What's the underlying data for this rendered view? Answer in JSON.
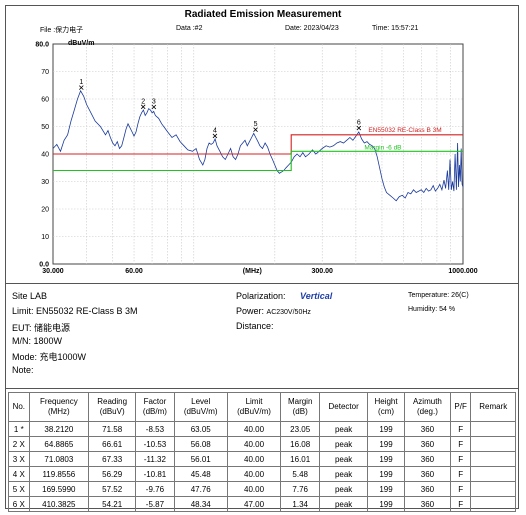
{
  "header": {
    "title": "Radiated Emission Measurement",
    "file": "File :保力电子",
    "data": "Data :#2",
    "date": "Date: 2023/04/23",
    "time": "Time: 15:57:21"
  },
  "chart_data": {
    "type": "line",
    "title": "Radiated Emission Measurement",
    "xlabel": "(MHz)",
    "ylabel": "dBuV/m",
    "x_scale": "log",
    "xlim": [
      30,
      1000
    ],
    "ylim": [
      0,
      80
    ],
    "x_ticks": [
      {
        "value": 30,
        "label": "30.000"
      },
      {
        "value": 60,
        "label": "60.00"
      },
      {
        "value": 300,
        "label": "300.00"
      },
      {
        "value": 1000,
        "label": "1000.000"
      }
    ],
    "x_unit_label_at": 165,
    "y_ticks": [
      {
        "value": 0,
        "label": "0.0"
      },
      {
        "value": 10,
        "label": "10"
      },
      {
        "value": 20,
        "label": "20"
      },
      {
        "value": 30,
        "label": "30"
      },
      {
        "value": 40,
        "label": "40"
      },
      {
        "value": 50,
        "label": "50"
      },
      {
        "value": 60,
        "label": "60"
      },
      {
        "value": 70,
        "label": "70"
      },
      {
        "value": 80,
        "label": "80.0"
      }
    ],
    "grid": true,
    "limit_line": {
      "label": "EN55032 RE-Class B 3M",
      "color": "#d42020",
      "points": [
        [
          30,
          40
        ],
        [
          230,
          40
        ],
        [
          230,
          47
        ],
        [
          1000,
          47
        ]
      ]
    },
    "margin_line": {
      "label": "Margin -6 dB",
      "color": "#1fc21f",
      "points": [
        [
          30,
          34
        ],
        [
          230,
          34
        ],
        [
          230,
          41
        ],
        [
          1000,
          41
        ]
      ]
    },
    "trace": {
      "color": "#1a3a9c",
      "points": [
        [
          30,
          42
        ],
        [
          31,
          43.5
        ],
        [
          32,
          41
        ],
        [
          33,
          45
        ],
        [
          34,
          47
        ],
        [
          35,
          52
        ],
        [
          36,
          56
        ],
        [
          37,
          60
        ],
        [
          38,
          63
        ],
        [
          39,
          61
        ],
        [
          40,
          58
        ],
        [
          41.5,
          55
        ],
        [
          43,
          52
        ],
        [
          45,
          50
        ],
        [
          47,
          47
        ],
        [
          48,
          48.5
        ],
        [
          49,
          46
        ],
        [
          50,
          44
        ],
        [
          51,
          43
        ],
        [
          52,
          44.5
        ],
        [
          53,
          42
        ],
        [
          54,
          43
        ],
        [
          55,
          46
        ],
        [
          56,
          49
        ],
        [
          57,
          51
        ],
        [
          58,
          49.5
        ],
        [
          59,
          48
        ],
        [
          60,
          46.5
        ],
        [
          61,
          48
        ],
        [
          62,
          51
        ],
        [
          63,
          53.5
        ],
        [
          64,
          55
        ],
        [
          65,
          56
        ],
        [
          66,
          54
        ],
        [
          67,
          55
        ],
        [
          68,
          56.5
        ],
        [
          69,
          56
        ],
        [
          70,
          55
        ],
        [
          71,
          55.5
        ],
        [
          72,
          54
        ],
        [
          74,
          53
        ],
        [
          76,
          51
        ],
        [
          78,
          49.5
        ],
        [
          80,
          48
        ],
        [
          83,
          46
        ],
        [
          86,
          47
        ],
        [
          89,
          44.5
        ],
        [
          92,
          43
        ],
        [
          95,
          41.5
        ],
        [
          99,
          41
        ],
        [
          102,
          42
        ],
        [
          105,
          38
        ],
        [
          108,
          36
        ],
        [
          110,
          38
        ],
        [
          112,
          42
        ],
        [
          114,
          44
        ],
        [
          116,
          43.5
        ],
        [
          118,
          44
        ],
        [
          120,
          45.5
        ],
        [
          122,
          43
        ],
        [
          125,
          41
        ],
        [
          128,
          39
        ],
        [
          131,
          38
        ],
        [
          134,
          40
        ],
        [
          137,
          42
        ],
        [
          140,
          39
        ],
        [
          143,
          38
        ],
        [
          146,
          40
        ],
        [
          149,
          43
        ],
        [
          152,
          44
        ],
        [
          155,
          45
        ],
        [
          158,
          43
        ],
        [
          161,
          44.5
        ],
        [
          164,
          46
        ],
        [
          167,
          47.5
        ],
        [
          170,
          46
        ],
        [
          173,
          44.5
        ],
        [
          176,
          43
        ],
        [
          180,
          42
        ],
        [
          184,
          44
        ],
        [
          188,
          42.5
        ],
        [
          192,
          40
        ],
        [
          196,
          38
        ],
        [
          200,
          36
        ],
        [
          204,
          34
        ],
        [
          208,
          33
        ],
        [
          212,
          33.5
        ],
        [
          216,
          34
        ],
        [
          220,
          35
        ],
        [
          225,
          36
        ],
        [
          230,
          37
        ],
        [
          236,
          39
        ],
        [
          242,
          40
        ],
        [
          248,
          39
        ],
        [
          254,
          40.5
        ],
        [
          260,
          39
        ],
        [
          268,
          40
        ],
        [
          276,
          41.5
        ],
        [
          284,
          40
        ],
        [
          292,
          41
        ],
        [
          300,
          42
        ],
        [
          310,
          43
        ],
        [
          320,
          42.5
        ],
        [
          330,
          43
        ],
        [
          340,
          44
        ],
        [
          350,
          44.5
        ],
        [
          360,
          44
        ],
        [
          370,
          45
        ],
        [
          380,
          46
        ],
        [
          390,
          45
        ],
        [
          400,
          46.5
        ],
        [
          410,
          48
        ],
        [
          420,
          45.5
        ],
        [
          430,
          44
        ],
        [
          440,
          44.5
        ],
        [
          450,
          43.5
        ],
        [
          460,
          43
        ],
        [
          470,
          42
        ],
        [
          480,
          39
        ],
        [
          490,
          35
        ],
        [
          500,
          31
        ],
        [
          510,
          28
        ],
        [
          520,
          26
        ],
        [
          535,
          25
        ],
        [
          550,
          24
        ],
        [
          565,
          23
        ],
        [
          580,
          24.5
        ],
        [
          595,
          25
        ],
        [
          610,
          24
        ],
        [
          625,
          26
        ],
        [
          640,
          25.5
        ],
        [
          655,
          27
        ],
        [
          670,
          26
        ],
        [
          685,
          26.5
        ],
        [
          700,
          27
        ],
        [
          715,
          26
        ],
        [
          730,
          27.5
        ],
        [
          745,
          26.5
        ],
        [
          760,
          27
        ],
        [
          775,
          28.5
        ],
        [
          790,
          26.5
        ],
        [
          805,
          27.5
        ],
        [
          820,
          29
        ],
        [
          835,
          27
        ],
        [
          850,
          30.5
        ],
        [
          862,
          27.5
        ],
        [
          875,
          34
        ],
        [
          885,
          27
        ],
        [
          895,
          38
        ],
        [
          905,
          27
        ],
        [
          915,
          30
        ],
        [
          925,
          26.5
        ],
        [
          935,
          40
        ],
        [
          945,
          27
        ],
        [
          955,
          44
        ],
        [
          962,
          28
        ],
        [
          970,
          36
        ],
        [
          977,
          30
        ],
        [
          985,
          42
        ],
        [
          992,
          29
        ],
        [
          1000,
          28
        ]
      ]
    },
    "markers": [
      {
        "label": "1",
        "x": 38.212,
        "y": 63.05
      },
      {
        "label": "2",
        "x": 64.8865,
        "y": 56.08
      },
      {
        "label": "3",
        "x": 71.0803,
        "y": 56.01
      },
      {
        "label": "4",
        "x": 119.8556,
        "y": 45.48
      },
      {
        "label": "5",
        "x": 169.599,
        "y": 47.76
      },
      {
        "label": "6",
        "x": 410.3825,
        "y": 48.34
      }
    ]
  },
  "info": {
    "site": "Site  LAB",
    "limit": "Limit:  EN55032 RE-Class B 3M",
    "eut": "EUT:  储能电源",
    "mn": "M/N:   1800W",
    "mode": "Mode:  充电1000W",
    "note": "Note:",
    "polarization_label": "Polarization:",
    "polarization_value": "Vertical",
    "power_label": "Power:",
    "power_value": "AC230V/50Hz",
    "distance": "Distance:",
    "temperature": "Temperature:        26(C)",
    "humidity": "Humidity:    54 %"
  },
  "table": {
    "headers": [
      "No.",
      "Frequency\n(MHz)",
      "Reading\n(dBuV)",
      "Factor\n(dB/m)",
      "Level\n(dBuV/m)",
      "Limit\n(dBuV/m)",
      "Margin\n(dB)",
      "Detector",
      "Height\n(cm)",
      "Azimuth\n(deg.)",
      "P/F",
      "Remark"
    ],
    "rows": [
      [
        "1 *",
        "38.2120",
        "71.58",
        "-8.53",
        "63.05",
        "40.00",
        "23.05",
        "peak",
        "199",
        "360",
        "F",
        ""
      ],
      [
        "2 X",
        "64.8865",
        "66.61",
        "-10.53",
        "56.08",
        "40.00",
        "16.08",
        "peak",
        "199",
        "360",
        "F",
        ""
      ],
      [
        "3 X",
        "71.0803",
        "67.33",
        "-11.32",
        "56.01",
        "40.00",
        "16.01",
        "peak",
        "199",
        "360",
        "F",
        ""
      ],
      [
        "4 X",
        "119.8556",
        "56.29",
        "-10.81",
        "45.48",
        "40.00",
        "5.48",
        "peak",
        "199",
        "360",
        "F",
        ""
      ],
      [
        "5 X",
        "169.5990",
        "57.52",
        "-9.76",
        "47.76",
        "40.00",
        "7.76",
        "peak",
        "199",
        "360",
        "F",
        ""
      ],
      [
        "6 X",
        "410.3825",
        "54.21",
        "-5.87",
        "48.34",
        "47.00",
        "1.34",
        "peak",
        "199",
        "360",
        "F",
        ""
      ]
    ]
  }
}
